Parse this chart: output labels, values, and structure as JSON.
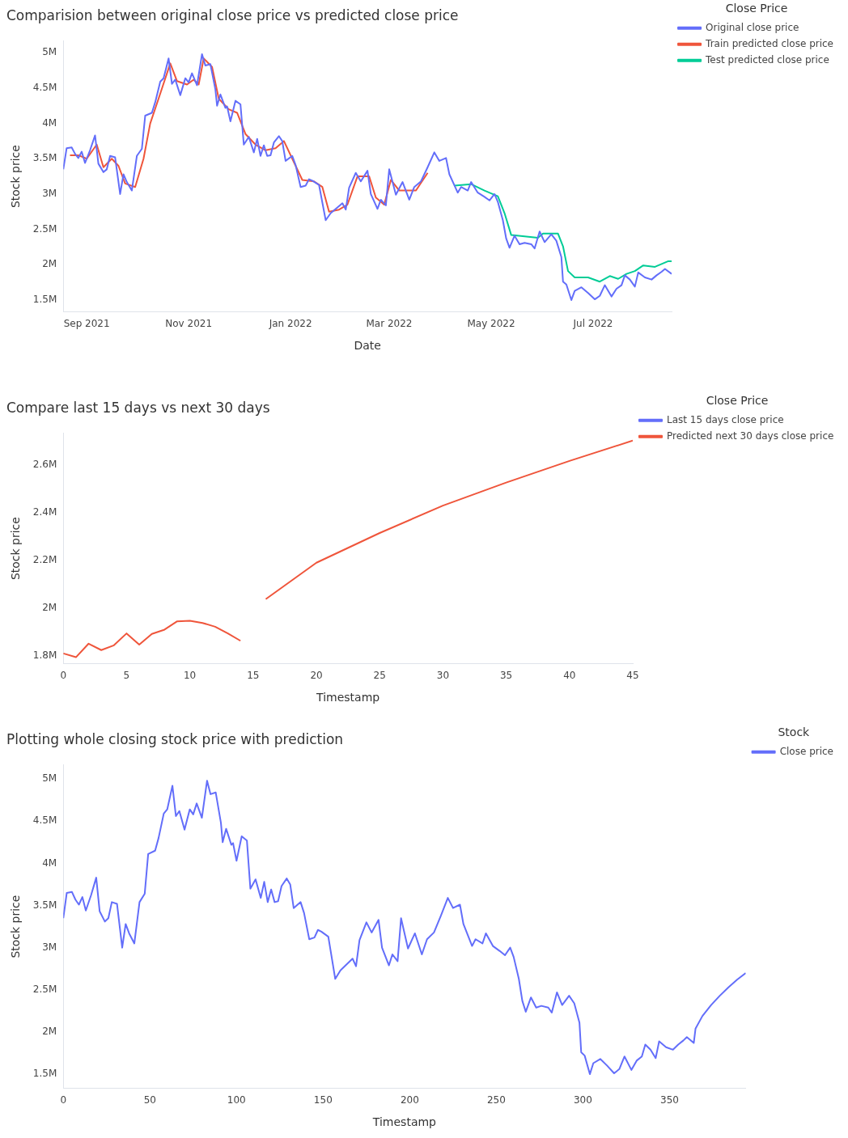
{
  "chart_data": [
    {
      "type": "line",
      "title": "Comparision between original close price vs predicted close price",
      "xlabel": "Date",
      "ylabel": "Stock price",
      "legend_title": "Close Price",
      "legend": "top right",
      "xlim": [
        "2021-08-18",
        "2022-08-17"
      ],
      "xticks": [
        {
          "value": "2021-09-01",
          "label": "Sep 2021"
        },
        {
          "value": "2021-11-01",
          "label": "Nov 2021"
        },
        {
          "value": "2022-01-01",
          "label": "Jan 2022"
        },
        {
          "value": "2022-03-01",
          "label": "Mar 2022"
        },
        {
          "value": "2022-05-01",
          "label": "May 2022"
        },
        {
          "value": "2022-07-01",
          "label": "Jul 2022"
        }
      ],
      "yticks": [
        {
          "value": 1500000,
          "label": "1.5M"
        },
        {
          "value": 2000000,
          "label": "2M"
        },
        {
          "value": 2500000,
          "label": "2.5M"
        },
        {
          "value": 3000000,
          "label": "3M"
        },
        {
          "value": 3500000,
          "label": "3.5M"
        },
        {
          "value": 4000000,
          "label": "4M"
        },
        {
          "value": 4500000,
          "label": "4.5M"
        },
        {
          "value": 5000000,
          "label": "5M"
        }
      ],
      "ylim": [
        1330000,
        5170000
      ],
      "series": [
        {
          "name": "Original close price",
          "color": "#636efa",
          "x": [
            "2021-08-18",
            "2021-08-20",
            "2021-08-23",
            "2021-08-25",
            "2021-08-27",
            "2021-08-29",
            "2021-08-31",
            "2021-09-03",
            "2021-09-06",
            "2021-09-08",
            "2021-09-11",
            "2021-09-13",
            "2021-09-15",
            "2021-09-18",
            "2021-09-21",
            "2021-09-23",
            "2021-09-25",
            "2021-09-28",
            "2021-10-01",
            "2021-10-04",
            "2021-10-06",
            "2021-10-10",
            "2021-10-12",
            "2021-10-15",
            "2021-10-17",
            "2021-10-20",
            "2021-10-22",
            "2021-10-24",
            "2021-10-27",
            "2021-10-30",
            "2021-11-01",
            "2021-11-03",
            "2021-11-06",
            "2021-11-09",
            "2021-11-11",
            "2021-11-14",
            "2021-11-17",
            "2021-11-18",
            "2021-11-20",
            "2021-11-23",
            "2021-11-24",
            "2021-11-26",
            "2021-11-29",
            "2021-12-02",
            "2021-12-04",
            "2021-12-07",
            "2021-12-10",
            "2021-12-12",
            "2021-12-14",
            "2021-12-16",
            "2021-12-18",
            "2021-12-20",
            "2021-12-22",
            "2021-12-25",
            "2021-12-27",
            "2021-12-29",
            "2022-01-02",
            "2022-01-04",
            "2022-01-07",
            "2022-01-10",
            "2022-01-12",
            "2022-01-14",
            "2022-01-18",
            "2022-01-22",
            "2022-01-25",
            "2022-01-28",
            "2022-02-01",
            "2022-02-03",
            "2022-02-05",
            "2022-02-09",
            "2022-02-12",
            "2022-02-16",
            "2022-02-18",
            "2022-02-22",
            "2022-02-24",
            "2022-02-27",
            "2022-03-01",
            "2022-03-05",
            "2022-03-09",
            "2022-03-13",
            "2022-03-16",
            "2022-03-20",
            "2022-03-24",
            "2022-03-28",
            "2022-03-31",
            "2022-04-04",
            "2022-04-06",
            "2022-04-11",
            "2022-04-13",
            "2022-04-17",
            "2022-04-19",
            "2022-04-23",
            "2022-04-27",
            "2022-04-30",
            "2022-05-03",
            "2022-05-05",
            "2022-05-08",
            "2022-05-10",
            "2022-05-12",
            "2022-05-15",
            "2022-05-18",
            "2022-05-21",
            "2022-05-25",
            "2022-05-27",
            "2022-05-30",
            "2022-06-02",
            "2022-06-06",
            "2022-06-09",
            "2022-06-12",
            "2022-06-13",
            "2022-06-15",
            "2022-06-18",
            "2022-06-20",
            "2022-06-24",
            "2022-06-28",
            "2022-07-02",
            "2022-07-05",
            "2022-07-08",
            "2022-07-12",
            "2022-07-15",
            "2022-07-18",
            "2022-07-20",
            "2022-07-23",
            "2022-07-26",
            "2022-07-28",
            "2022-08-01",
            "2022-08-05",
            "2022-08-08",
            "2022-08-11",
            "2022-08-13",
            "2022-08-17"
          ],
          "values": [
            3350000,
            3650000,
            3660000,
            3570000,
            3510000,
            3600000,
            3440000,
            3620000,
            3830000,
            3430000,
            3310000,
            3350000,
            3540000,
            3520000,
            3000000,
            3280000,
            3170000,
            3050000,
            3540000,
            3640000,
            4110000,
            4150000,
            4300000,
            4590000,
            4640000,
            4920000,
            4560000,
            4620000,
            4400000,
            4640000,
            4580000,
            4710000,
            4540000,
            4980000,
            4820000,
            4840000,
            4480000,
            4250000,
            4410000,
            4220000,
            4240000,
            4030000,
            4320000,
            4270000,
            3700000,
            3810000,
            3590000,
            3780000,
            3540000,
            3690000,
            3540000,
            3550000,
            3730000,
            3820000,
            3750000,
            3470000,
            3540000,
            3410000,
            3100000,
            3120000,
            3210000,
            3190000,
            3130000,
            2630000,
            2730000,
            2790000,
            2870000,
            2780000,
            3090000,
            3300000,
            3180000,
            3330000,
            3000000,
            2790000,
            2920000,
            2840000,
            3350000,
            2990000,
            3170000,
            2920000,
            3100000,
            3180000,
            3380000,
            3590000,
            3470000,
            3510000,
            3280000,
            3020000,
            3100000,
            3050000,
            3170000,
            3020000,
            2960000,
            2910000,
            3000000,
            2890000,
            2630000,
            2370000,
            2240000,
            2410000,
            2290000,
            2310000,
            2290000,
            2230000,
            2470000,
            2320000,
            2430000,
            2340000,
            2110000,
            1760000,
            1720000,
            1500000,
            1630000,
            1680000,
            1600000,
            1510000,
            1560000,
            1710000,
            1550000,
            1660000,
            1710000,
            1850000,
            1790000,
            1690000,
            1890000,
            1820000,
            1790000,
            1850000,
            1900000,
            1940000,
            1870000
          ]
        },
        {
          "name": "Train predicted close price",
          "color": "#ef553b",
          "x": [
            "2021-08-22",
            "2021-08-27",
            "2021-09-01",
            "2021-09-07",
            "2021-09-11",
            "2021-09-16",
            "2021-09-20",
            "2021-09-24",
            "2021-09-30",
            "2021-10-05",
            "2021-10-09",
            "2021-10-14",
            "2021-10-21",
            "2021-10-25",
            "2021-10-31",
            "2021-11-04",
            "2021-11-07",
            "2021-11-10",
            "2021-11-15",
            "2021-11-19",
            "2021-11-25",
            "2021-11-30",
            "2021-12-05",
            "2021-12-11",
            "2021-12-17",
            "2021-12-23",
            "2021-12-28",
            "2022-01-02",
            "2022-01-08",
            "2022-01-15",
            "2022-01-20",
            "2022-01-24",
            "2022-01-30",
            "2022-02-04",
            "2022-02-10",
            "2022-02-17",
            "2022-02-21",
            "2022-02-26",
            "2022-03-02",
            "2022-03-07",
            "2022-03-12",
            "2022-03-17",
            "2022-03-24"
          ],
          "values": [
            3550000,
            3550000,
            3500000,
            3700000,
            3380000,
            3500000,
            3400000,
            3150000,
            3100000,
            3500000,
            4000000,
            4350000,
            4850000,
            4600000,
            4550000,
            4620000,
            4550000,
            4920000,
            4800000,
            4350000,
            4200000,
            4150000,
            3850000,
            3700000,
            3620000,
            3650000,
            3750000,
            3500000,
            3200000,
            3180000,
            3100000,
            2750000,
            2780000,
            2850000,
            3250000,
            3250000,
            2950000,
            2850000,
            3200000,
            3050000,
            3050000,
            3050000,
            3300000
          ]
        },
        {
          "name": "Test predicted close price",
          "color": "#00cc96",
          "x": [
            "2022-04-09",
            "2022-04-19",
            "2022-04-27",
            "2022-05-05",
            "2022-05-09",
            "2022-05-13",
            "2022-05-21",
            "2022-05-29",
            "2022-06-01",
            "2022-06-10",
            "2022-06-13",
            "2022-06-16",
            "2022-06-20",
            "2022-06-28",
            "2022-07-05",
            "2022-07-11",
            "2022-07-16",
            "2022-07-21",
            "2022-07-26",
            "2022-07-31",
            "2022-08-07",
            "2022-08-15",
            "2022-08-17"
          ],
          "values": [
            3120000,
            3140000,
            3050000,
            2970000,
            2730000,
            2420000,
            2400000,
            2380000,
            2440000,
            2440000,
            2260000,
            1910000,
            1820000,
            1820000,
            1760000,
            1840000,
            1800000,
            1870000,
            1910000,
            1990000,
            1970000,
            2050000,
            2050000
          ]
        }
      ]
    },
    {
      "type": "line",
      "title": "Compare last 15 days vs next 30 days",
      "xlabel": "Timestamp",
      "ylabel": "Stock price",
      "legend_title": "Close Price",
      "legend": "top right",
      "xlim": [
        0,
        45
      ],
      "xticks": [
        0,
        5,
        10,
        15,
        20,
        25,
        30,
        35,
        40,
        45
      ],
      "ylim": [
        1765000,
        2735000
      ],
      "yticks": [
        {
          "value": 1800000,
          "label": "1.8M"
        },
        {
          "value": 2000000,
          "label": "2M"
        },
        {
          "value": 2200000,
          "label": "2.2M"
        },
        {
          "value": 2400000,
          "label": "2.4M"
        },
        {
          "value": 2600000,
          "label": "2.6M"
        }
      ],
      "series": [
        {
          "name": "Last 15 days close price",
          "color": "#636efa"
        },
        {
          "name": "Predicted next 30 days close price",
          "color": "#ef553b",
          "x": [
            0,
            1,
            2,
            3,
            4,
            5,
            6,
            7,
            8,
            9,
            10,
            11,
            12,
            13,
            14,
            15,
            16,
            20,
            25,
            30,
            35,
            40,
            45
          ],
          "values": [
            1809000,
            1793000,
            1850000,
            1823000,
            1843000,
            1893000,
            1846000,
            1891000,
            1909000,
            1944000,
            1946000,
            1937000,
            1921000,
            1893000,
            1862000,
            null,
            2037000,
            2190000,
            2315000,
            2430000,
            2527000,
            2618000,
            2703000
          ]
        }
      ]
    },
    {
      "type": "line",
      "title": "Plotting whole closing stock price with prediction",
      "xlabel": "Timestamp",
      "ylabel": "Stock price",
      "legend_title": "Stock",
      "legend": "top right",
      "xlim": [
        0,
        394
      ],
      "xticks": [
        0,
        50,
        100,
        150,
        200,
        250,
        300,
        350
      ],
      "ylim": [
        1330000,
        5170000
      ],
      "yticks": [
        {
          "value": 1500000,
          "label": "1.5M"
        },
        {
          "value": 2000000,
          "label": "2M"
        },
        {
          "value": 2500000,
          "label": "2.5M"
        },
        {
          "value": 3000000,
          "label": "3M"
        },
        {
          "value": 3500000,
          "label": "3.5M"
        },
        {
          "value": 4000000,
          "label": "4M"
        },
        {
          "value": 4500000,
          "label": "4.5M"
        },
        {
          "value": 5000000,
          "label": "5M"
        }
      ],
      "series": [
        {
          "name": "Close price",
          "color": "#636efa",
          "x": [
            0,
            2,
            5,
            7,
            9,
            11,
            13,
            16,
            19,
            21,
            24,
            26,
            28,
            31,
            34,
            36,
            38,
            41,
            44,
            47,
            49,
            53,
            55,
            58,
            60,
            63,
            65,
            67,
            70,
            73,
            75,
            77,
            80,
            83,
            85,
            88,
            91,
            92,
            94,
            97,
            98,
            100,
            103,
            106,
            108,
            111,
            114,
            116,
            118,
            120,
            122,
            124,
            126,
            129,
            131,
            133,
            137,
            139,
            142,
            145,
            147,
            149,
            153,
            157,
            160,
            163,
            167,
            169,
            171,
            175,
            178,
            182,
            184,
            188,
            190,
            193,
            195,
            199,
            203,
            207,
            210,
            214,
            218,
            222,
            225,
            229,
            231,
            236,
            238,
            242,
            244,
            248,
            252,
            255,
            258,
            260,
            263,
            265,
            267,
            270,
            273,
            276,
            280,
            282,
            285,
            288,
            292,
            295,
            298,
            299,
            301,
            304,
            306,
            310,
            314,
            318,
            321,
            324,
            328,
            331,
            334,
            336,
            339,
            342,
            344,
            348,
            352,
            355,
            358,
            360,
            364,
            365,
            369,
            374,
            379,
            384,
            389,
            394
          ],
          "values": [
            3350000,
            3650000,
            3660000,
            3570000,
            3510000,
            3600000,
            3440000,
            3620000,
            3830000,
            3430000,
            3310000,
            3350000,
            3540000,
            3520000,
            3000000,
            3280000,
            3170000,
            3050000,
            3540000,
            3640000,
            4110000,
            4150000,
            4300000,
            4590000,
            4640000,
            4920000,
            4560000,
            4620000,
            4400000,
            4640000,
            4580000,
            4710000,
            4540000,
            4980000,
            4820000,
            4840000,
            4480000,
            4250000,
            4410000,
            4220000,
            4240000,
            4030000,
            4320000,
            4270000,
            3700000,
            3810000,
            3590000,
            3780000,
            3540000,
            3690000,
            3540000,
            3550000,
            3730000,
            3820000,
            3750000,
            3470000,
            3540000,
            3410000,
            3100000,
            3120000,
            3210000,
            3190000,
            3130000,
            2630000,
            2730000,
            2790000,
            2870000,
            2780000,
            3090000,
            3300000,
            3180000,
            3330000,
            3000000,
            2790000,
            2920000,
            2840000,
            3350000,
            2990000,
            3170000,
            2920000,
            3100000,
            3180000,
            3380000,
            3590000,
            3470000,
            3510000,
            3280000,
            3020000,
            3100000,
            3050000,
            3170000,
            3020000,
            2960000,
            2910000,
            3000000,
            2890000,
            2630000,
            2370000,
            2240000,
            2410000,
            2290000,
            2310000,
            2290000,
            2230000,
            2470000,
            2320000,
            2430000,
            2340000,
            2110000,
            1760000,
            1720000,
            1500000,
            1630000,
            1680000,
            1600000,
            1510000,
            1560000,
            1710000,
            1550000,
            1660000,
            1710000,
            1850000,
            1790000,
            1690000,
            1890000,
            1820000,
            1790000,
            1850000,
            1900000,
            1940000,
            1870000,
            2040000,
            2190000,
            2320000,
            2430000,
            2530000,
            2620000,
            2700000
          ]
        }
      ]
    }
  ]
}
